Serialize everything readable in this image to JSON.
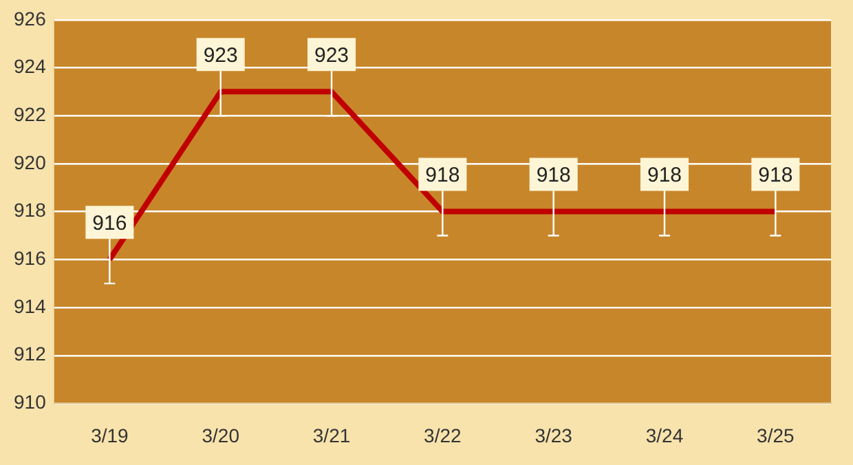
{
  "chart_data": {
    "type": "line",
    "categories": [
      "3/19",
      "3/20",
      "3/21",
      "3/22",
      "3/23",
      "3/24",
      "3/25"
    ],
    "values": [
      916,
      923,
      923,
      918,
      918,
      918,
      918
    ],
    "errors": [
      1,
      1,
      1,
      1,
      1,
      1,
      1
    ],
    "color": "#c00000",
    "ylim": [
      910,
      926
    ],
    "yticks": [
      910,
      912,
      914,
      916,
      918,
      920,
      922,
      924,
      926
    ],
    "grid": "y",
    "data_labels": true,
    "marker": "none",
    "line_style": "solid",
    "legend": false
  }
}
